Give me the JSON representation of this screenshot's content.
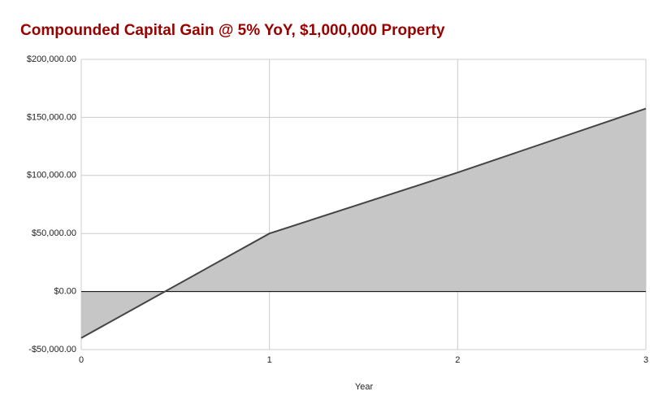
{
  "chart_data": {
    "type": "area",
    "title": "Compounded Capital Gain @ 5% YoY, $1,000,000 Property",
    "x_label": "Year",
    "x": [
      0,
      1,
      2,
      3
    ],
    "values": [
      -40000,
      50000,
      102500,
      157625
    ],
    "color": "#c6c6c6",
    "line_color": "#444444",
    "xlim": [
      0,
      3
    ],
    "xticks": [
      0,
      1,
      2,
      3
    ],
    "ylim": [
      -50000,
      200000
    ],
    "yticks": [
      {
        "value": -50000,
        "label": "-$50,000.00"
      },
      {
        "value": 0,
        "label": "$0.00"
      },
      {
        "value": 50000,
        "label": "$50,000.00"
      },
      {
        "value": 100000,
        "label": "$100,000.00"
      },
      {
        "value": 150000,
        "label": "$150,000.00"
      },
      {
        "value": 200000,
        "label": "$200,000.00"
      }
    ],
    "grid": true
  }
}
